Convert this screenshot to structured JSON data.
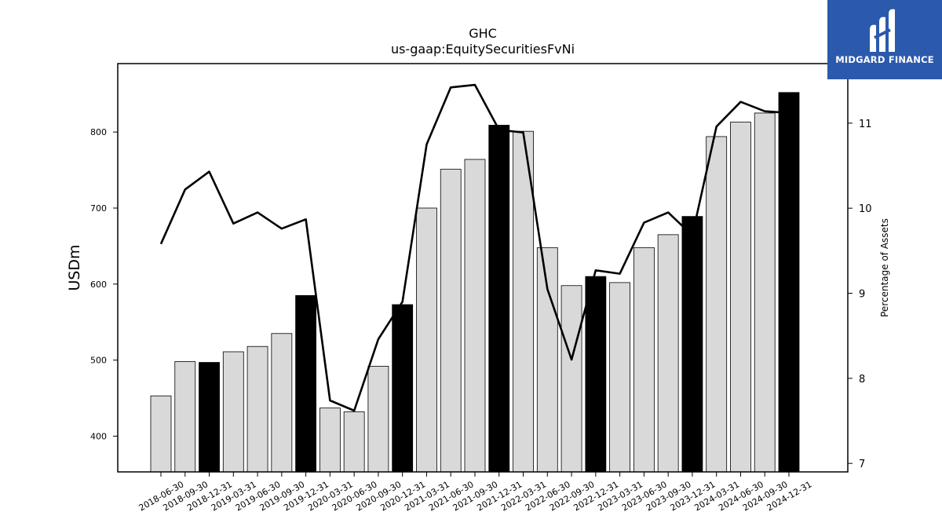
{
  "chart_data": {
    "type": "bar+line",
    "title": "GHC",
    "subtitle": "us-gaap:EquitySecuritiesFvNi",
    "ylabel": "USDm",
    "ylabel_right": "Percentage of Assets",
    "ylim": [
      353,
      890
    ],
    "ylim_right": [
      6.9,
      11.7
    ],
    "yticks": [
      400,
      500,
      600,
      700,
      800
    ],
    "yticks_right": [
      7,
      8,
      9,
      10,
      11
    ],
    "categories": [
      "2018-06-30",
      "2018-09-30",
      "2018-12-31",
      "2019-03-31",
      "2019-06-30",
      "2019-09-30",
      "2019-12-31",
      "2020-03-31",
      "2020-06-30",
      "2020-09-30",
      "2020-12-31",
      "2021-03-31",
      "2021-06-30",
      "2021-09-30",
      "2021-12-31",
      "2022-03-31",
      "2022-06-30",
      "2022-09-30",
      "2022-12-31",
      "2023-03-31",
      "2023-06-30",
      "2023-09-30",
      "2023-12-31",
      "2024-03-31",
      "2024-06-30",
      "2024-09-30",
      "2024-12-31"
    ],
    "series": [
      {
        "type": "bar",
        "values": [
          453,
          498,
          497,
          511,
          518,
          535,
          585,
          437,
          432,
          492,
          573,
          700,
          751,
          764,
          809,
          801,
          648,
          598,
          610,
          602,
          648,
          665,
          689,
          794,
          813,
          825,
          852
        ],
        "colors": [
          "#d9d9d9",
          "#d9d9d9",
          "#000000",
          "#d9d9d9",
          "#d9d9d9",
          "#d9d9d9",
          "#000000",
          "#d9d9d9",
          "#d9d9d9",
          "#d9d9d9",
          "#000000",
          "#d9d9d9",
          "#d9d9d9",
          "#d9d9d9",
          "#000000",
          "#d9d9d9",
          "#d9d9d9",
          "#d9d9d9",
          "#000000",
          "#d9d9d9",
          "#d9d9d9",
          "#d9d9d9",
          "#000000",
          "#d9d9d9",
          "#d9d9d9",
          "#d9d9d9",
          "#000000"
        ]
      },
      {
        "type": "line",
        "axis": "right",
        "values": [
          9.58,
          10.22,
          10.43,
          9.82,
          9.95,
          9.76,
          9.87,
          7.74,
          7.62,
          8.46,
          8.9,
          10.75,
          11.42,
          11.45,
          10.92,
          10.89,
          9.05,
          8.22,
          9.27,
          9.23,
          9.83,
          9.95,
          9.68,
          10.96,
          11.25,
          11.14,
          11.12
        ]
      }
    ],
    "grid": false,
    "bar_fill": "#d9d9d9",
    "bar_highlight": "#000000",
    "line_color": "#000000"
  },
  "logo": {
    "text": "MIDGARD FINANCE",
    "background": "#2b5aad"
  }
}
